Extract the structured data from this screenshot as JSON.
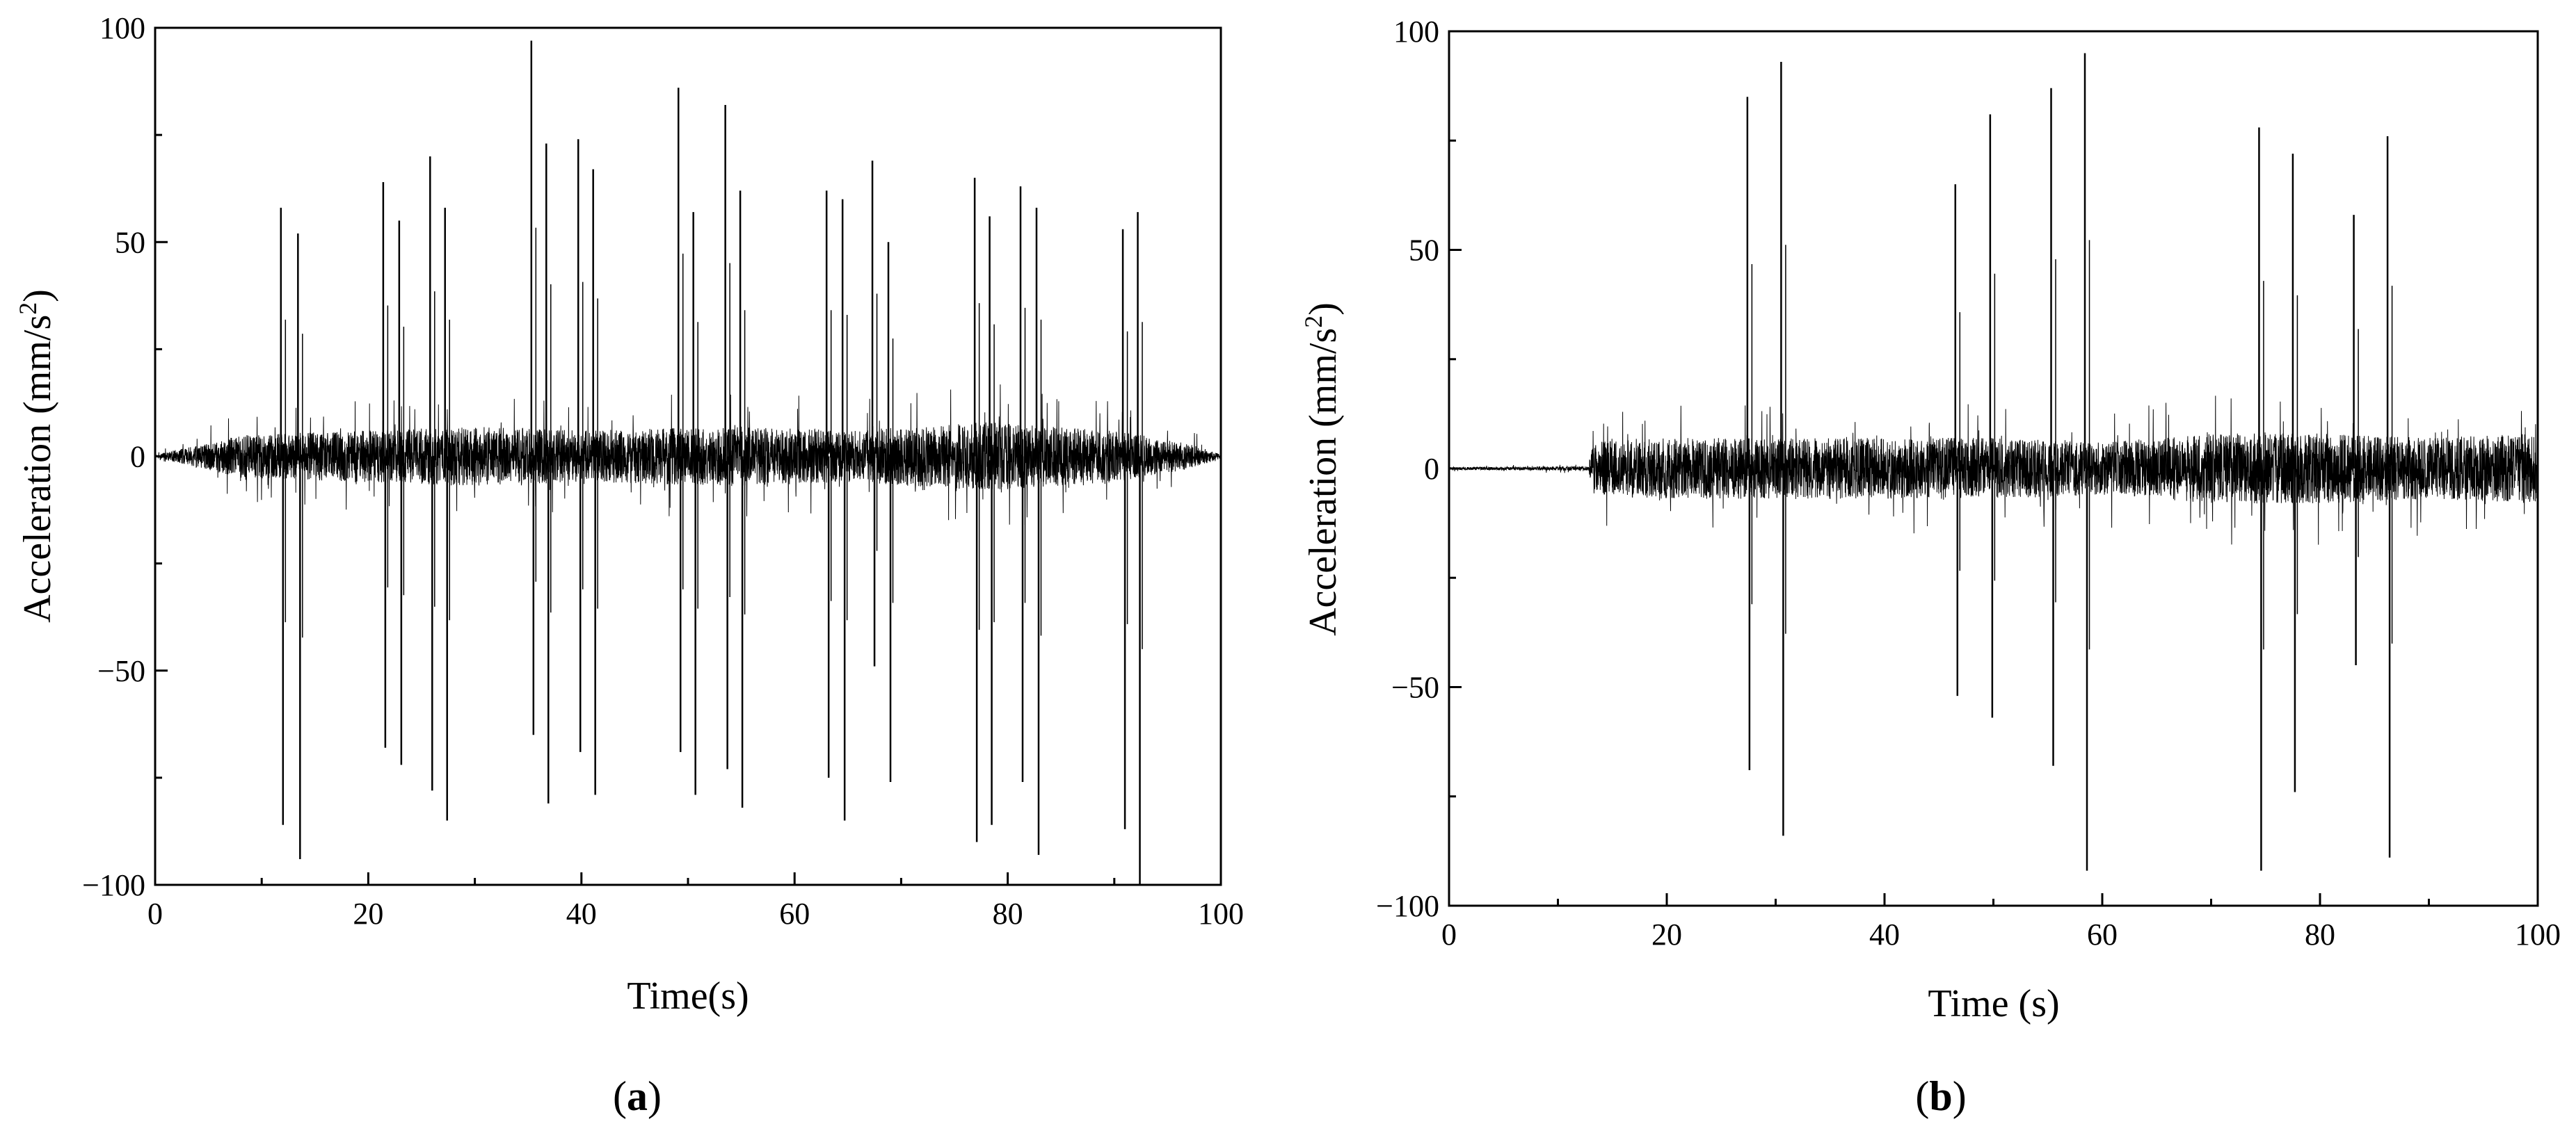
{
  "colors": {
    "line": "#000000",
    "background": "#ffffff"
  },
  "chart_data": [
    {
      "type": "line",
      "panel_label": "a",
      "xlabel": "Time(s)",
      "ylabel": "Acceleration (mm/s²)",
      "ylabel_main": "Acceleration (mm/s",
      "ylabel_sup": "2",
      "ylabel_end": ")",
      "xlim": [
        0,
        100
      ],
      "ylim": [
        -100,
        100
      ],
      "xticks": [
        0,
        20,
        40,
        60,
        80,
        100
      ],
      "yticks": [
        -100,
        -50,
        0,
        50,
        100
      ],
      "grid": false,
      "noise": {
        "duration_s": 100,
        "envelope": [
          [
            0,
            0.3
          ],
          [
            3,
            2
          ],
          [
            8,
            5
          ],
          [
            20,
            6
          ],
          [
            30,
            7
          ],
          [
            40,
            6
          ],
          [
            55,
            7
          ],
          [
            65,
            6
          ],
          [
            78,
            8
          ],
          [
            90,
            6
          ],
          [
            97,
            3
          ],
          [
            100,
            0.5
          ]
        ]
      },
      "peaks": [
        {
          "t": 11.9,
          "max": 58,
          "min": -86
        },
        {
          "t": 13.5,
          "max": 52,
          "min": -94
        },
        {
          "t": 21.5,
          "max": 64,
          "min": -68
        },
        {
          "t": 23.0,
          "max": 55,
          "min": -72
        },
        {
          "t": 25.9,
          "max": 70,
          "min": -78
        },
        {
          "t": 27.3,
          "max": 58,
          "min": -85
        },
        {
          "t": 35.4,
          "max": 97,
          "min": -65
        },
        {
          "t": 36.8,
          "max": 73,
          "min": -81
        },
        {
          "t": 39.8,
          "max": 74,
          "min": -69
        },
        {
          "t": 41.2,
          "max": 67,
          "min": -79
        },
        {
          "t": 49.2,
          "max": 86,
          "min": -69
        },
        {
          "t": 50.6,
          "max": 57,
          "min": -79
        },
        {
          "t": 53.6,
          "max": 82,
          "min": -73
        },
        {
          "t": 55.0,
          "max": 62,
          "min": -82
        },
        {
          "t": 63.1,
          "max": 62,
          "min": -75
        },
        {
          "t": 64.6,
          "max": 60,
          "min": -85
        },
        {
          "t": 67.4,
          "max": 69,
          "min": -49
        },
        {
          "t": 68.9,
          "max": 50,
          "min": -76
        },
        {
          "t": 77.0,
          "max": 65,
          "min": -90
        },
        {
          "t": 78.4,
          "max": 56,
          "min": -86
        },
        {
          "t": 81.3,
          "max": 63,
          "min": -76
        },
        {
          "t": 82.8,
          "max": 58,
          "min": -93
        },
        {
          "t": 90.9,
          "max": 53,
          "min": -87
        },
        {
          "t": 92.3,
          "max": 57,
          "min": -100
        }
      ]
    },
    {
      "type": "line",
      "panel_label": "b",
      "xlabel": "Time (s)",
      "ylabel": "Acceleration (mm/s²)",
      "ylabel_main": "Acceleration (mm/s",
      "ylabel_sup": "2",
      "ylabel_end": ")",
      "xlim": [
        0,
        100
      ],
      "ylim": [
        -100,
        100
      ],
      "xticks": [
        0,
        20,
        40,
        60,
        80,
        100
      ],
      "yticks": [
        -100,
        -50,
        0,
        50,
        100
      ],
      "grid": false,
      "noise": {
        "duration_s": 100,
        "envelope": [
          [
            0,
            0.3
          ],
          [
            12.8,
            0.5
          ],
          [
            13.2,
            6
          ],
          [
            20,
            7
          ],
          [
            30,
            7
          ],
          [
            40,
            7
          ],
          [
            50,
            7
          ],
          [
            60,
            6
          ],
          [
            70,
            8
          ],
          [
            80,
            8
          ],
          [
            90,
            7
          ],
          [
            100,
            8
          ]
        ]
      },
      "peaks": [
        {
          "t": 27.5,
          "max": 85,
          "min": -69
        },
        {
          "t": 30.6,
          "max": 93,
          "min": -84
        },
        {
          "t": 46.6,
          "max": 65,
          "min": -52
        },
        {
          "t": 49.8,
          "max": 81,
          "min": -57
        },
        {
          "t": 55.4,
          "max": 87,
          "min": -68
        },
        {
          "t": 58.5,
          "max": 95,
          "min": -92
        },
        {
          "t": 74.5,
          "max": 78,
          "min": -92
        },
        {
          "t": 77.6,
          "max": 72,
          "min": -74
        },
        {
          "t": 83.2,
          "max": 58,
          "min": -45
        },
        {
          "t": 86.3,
          "max": 76,
          "min": -89
        }
      ]
    }
  ]
}
